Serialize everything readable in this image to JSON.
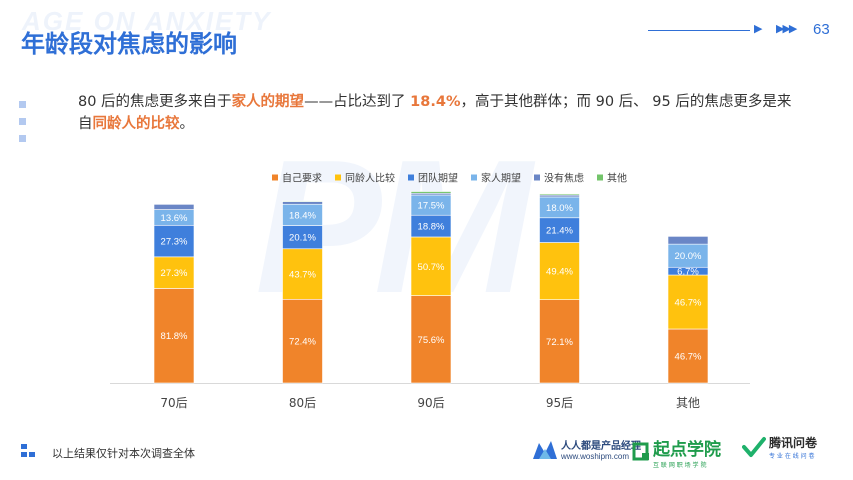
{
  "header": {
    "watermark": "AGE ON ANXIETY",
    "title": "年龄段对焦虑的影响",
    "page_number": "63"
  },
  "summary": {
    "part1": "80 后的焦虑更多来自于",
    "hl1": "家人的期望",
    "part2": "——占比达到了 ",
    "hl2": "18.4%",
    "part3": "，高于其他群体；而 90 后、 95 后的焦虑更多是来自",
    "hl3": "同龄人的比较",
    "part4": "。"
  },
  "watermark_pm": "PM",
  "footnote": "以上结果仅针对本次调查全体",
  "logos": {
    "logo1_name": "人人都是产品经理",
    "logo1_url": "www.woshipm.com",
    "logo2_name": "起点学院",
    "logo2_sub": "互 联 网 职 场 学 院",
    "logo3_name": "腾讯问卷",
    "logo3_sub": "专 业 在 线 问 卷"
  },
  "colors": {
    "accent": "#2f6fd6",
    "highlight": "#e8773b",
    "self": "#f0842a",
    "peer": "#ffc20e",
    "team": "#3f7fdc",
    "family": "#7ab4ea",
    "none": "#6a86c6",
    "other": "#73c46a"
  },
  "chart_data": {
    "type": "bar",
    "stacked": true,
    "categories": [
      "70后",
      "80后",
      "90后",
      "95后",
      "其他"
    ],
    "series": [
      {
        "name": "自己要求",
        "color": "#f0842a",
        "values": [
          81.8,
          72.4,
          75.6,
          72.1,
          46.7
        ]
      },
      {
        "name": "同龄人比较",
        "color": "#ffc20e",
        "values": [
          27.3,
          43.7,
          50.7,
          49.4,
          46.7
        ]
      },
      {
        "name": "团队期望",
        "color": "#3f7fdc",
        "values": [
          27.3,
          20.1,
          18.8,
          21.4,
          6.7
        ]
      },
      {
        "name": "家人期望",
        "color": "#7ab4ea",
        "values": [
          13.6,
          18.4,
          17.5,
          18.0,
          20.0
        ]
      },
      {
        "name": "没有焦虑",
        "color": "#6a86c6",
        "values": [
          4.5,
          2.3,
          1.5,
          1.6,
          6.7
        ]
      },
      {
        "name": "其他",
        "color": "#73c46a",
        "values": [
          0,
          0.6,
          1.5,
          1.0,
          0
        ]
      }
    ],
    "data_labels": [
      [
        "81.8%",
        "72.4%",
        "75.6%",
        "72.1%",
        "46.7%"
      ],
      [
        "27.3%",
        "43.7%",
        "50.7%",
        "49.4%",
        "46.7%"
      ],
      [
        "27.3%",
        "20.1%",
        "18.8%",
        "21.4%",
        "6.7%"
      ],
      [
        "13.6%",
        "18.4%",
        "17.5%",
        "18.0%",
        "20.0%"
      ],
      [
        "",
        "",
        "",
        "",
        ""
      ],
      [
        "",
        "",
        "",
        "",
        ""
      ]
    ],
    "legend_position": "top",
    "ylim": [
      0,
      160
    ],
    "grid": false
  }
}
